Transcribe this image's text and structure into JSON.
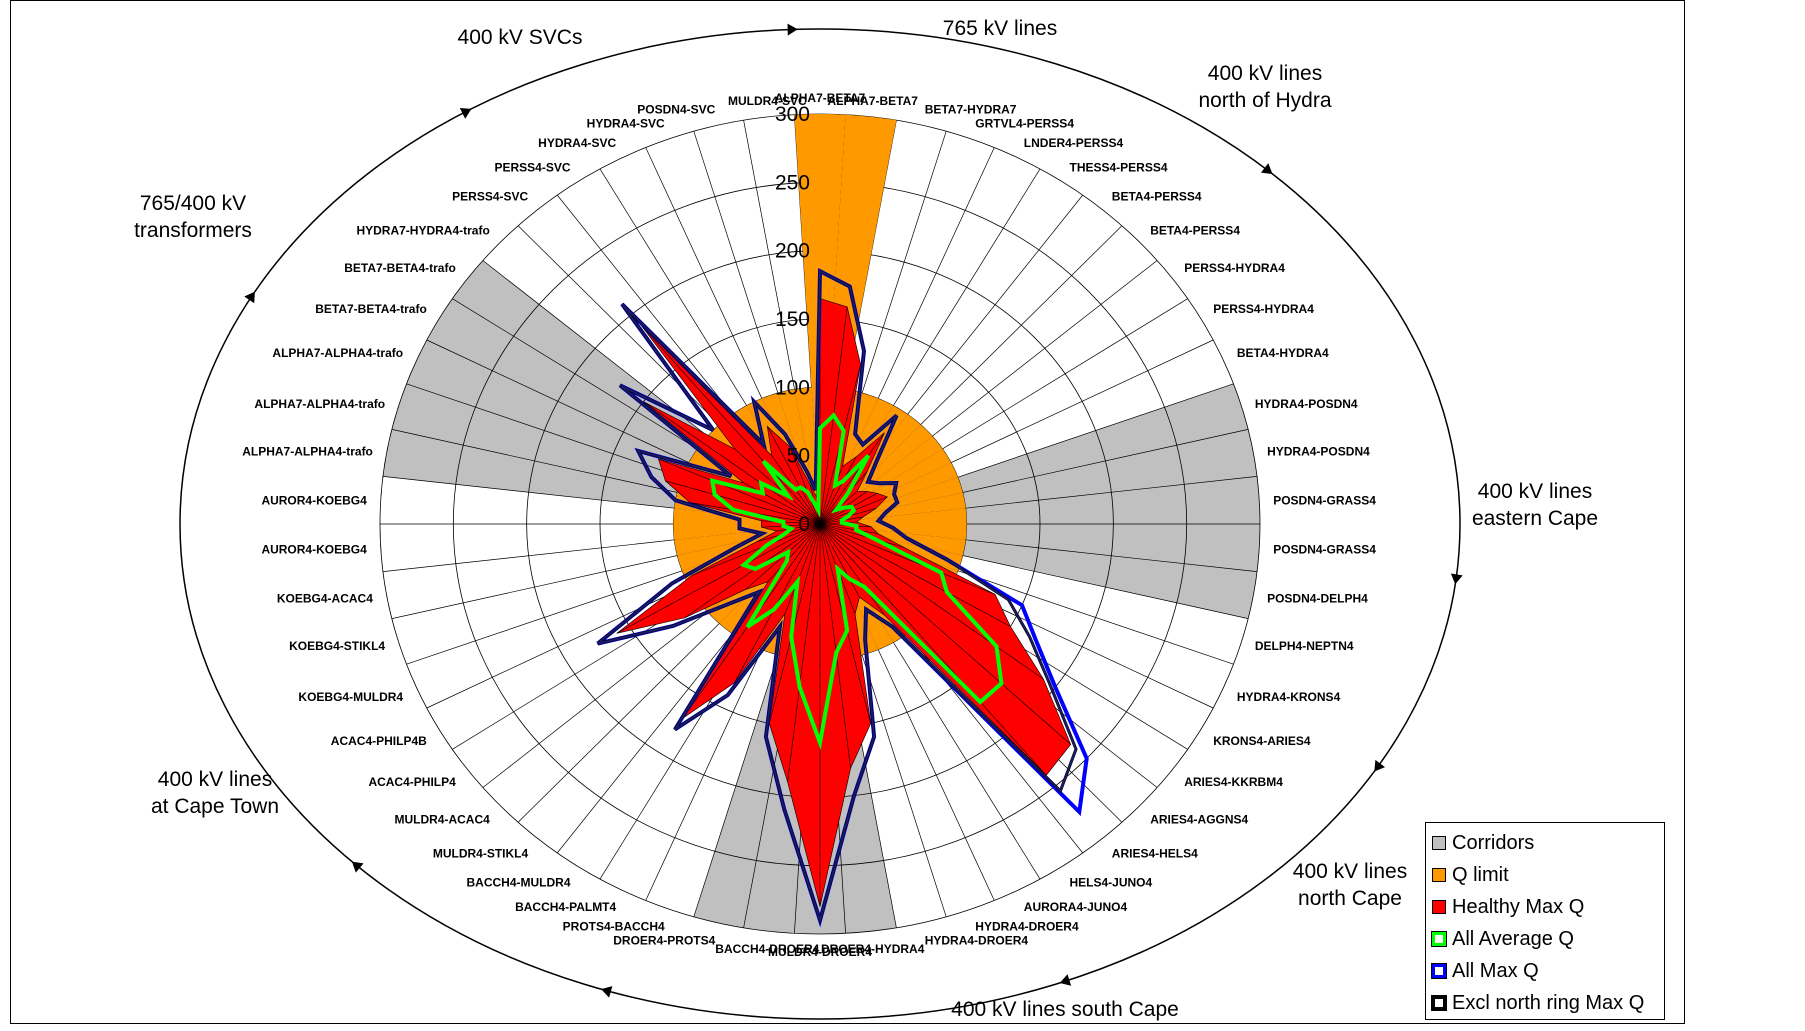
{
  "chart_data": {
    "type": "radar",
    "title": "",
    "radial_ticks": [
      "0",
      "50",
      "100",
      "150",
      "200",
      "250",
      "300"
    ],
    "r_max": 300,
    "categories": [
      "ALPHA7-BETA7",
      "ALPHA7-BETA7",
      "BETA7-HYDRA7",
      "GRTVL4-PERSS4",
      "LNDER4-PERSS4",
      "THESS4-PERSS4",
      "BETA4-PERSS4",
      "BETA4-PERSS4",
      "PERSS4-HYDRA4",
      "PERSS4-HYDRA4",
      "BETA4-HYDRA4",
      "HYDRA4-POSDN4",
      "HYDRA4-POSDN4",
      "POSDN4-GRASS4",
      "POSDN4-GRASS4",
      "POSDN4-DELPH4",
      "DELPH4-NEPTN4",
      "HYDRA4-KRONS4",
      "KRONS4-ARIES4",
      "ARIES4-KKRBM4",
      "ARIES4-AGGNS4",
      "ARIES4-HELS4",
      "HELS4-JUNO4",
      "AURORA4-JUNO4",
      "HYDRA4-DROER4",
      "HYDRA4-DROER4",
      "DROER4-HYDRA4",
      "MULDR4-DROER4",
      "BACCH4-DROER4",
      "DROER4-PROTS4",
      "PROTS4-BACCH4",
      "BACCH4-PALMT4",
      "BACCH4-MULDR4",
      "MULDR4-STIKL4",
      "MULDR4-ACAC4",
      "ACAC4-PHILP4",
      "ACAC4-PHILP4B",
      "KOEBG4-MULDR4",
      "KOEBG4-STIKL4",
      "KOEBG4-ACAC4",
      "AUROR4-KOEBG4",
      "AUROR4-KOEBG4",
      "ALPHA7-ALPHA4-trafo",
      "ALPHA7-ALPHA4-trafo",
      "ALPHA7-ALPHA4-trafo",
      "BETA7-BETA4-trafo",
      "BETA7-BETA4-trafo",
      "HYDRA7-HYDRA4-trafo",
      "PERSS4-SVC",
      "PERSS4-SVC",
      "HYDRA4-SVC",
      "HYDRA4-SVC",
      "POSDN4-SVC",
      "MULDR4-SVC"
    ],
    "group_labels": [
      {
        "text": "765 kV lines",
        "lines": [
          "765 kV lines"
        ]
      },
      {
        "text": "400 kV lines north of Hydra",
        "lines": [
          "400 kV lines",
          "north of Hydra"
        ]
      },
      {
        "text": "400 kV lines eastern Cape",
        "lines": [
          "400 kV lines",
          "eastern Cape"
        ]
      },
      {
        "text": "400 kV lines north Cape",
        "lines": [
          "400 kV lines",
          "north Cape"
        ]
      },
      {
        "text": "400 kV lines south Cape",
        "lines": [
          "400 kV lines south Cape"
        ]
      },
      {
        "text": "400 kV lines at Cape Town",
        "lines": [
          "400 kV lines",
          "at Cape Town"
        ]
      },
      {
        "text": "765/400 kV transformers",
        "lines": [
          "765/400 kV",
          "transformers"
        ]
      },
      {
        "text": "400 kV SVCs",
        "lines": [
          "400 kV SVCs"
        ]
      }
    ],
    "series": [
      {
        "name": "Corridors",
        "color": "#c0c0c0",
        "values": [
          0,
          0,
          0,
          0,
          0,
          0,
          0,
          0,
          0,
          0,
          0,
          300,
          300,
          300,
          300,
          300,
          0,
          0,
          0,
          0,
          0,
          0,
          0,
          0,
          0,
          0,
          300,
          300,
          300,
          300,
          0,
          0,
          0,
          0,
          0,
          0,
          0,
          0,
          0,
          0,
          0,
          0,
          300,
          300,
          300,
          300,
          300,
          0,
          0,
          0,
          0,
          0,
          0,
          0
        ]
      },
      {
        "name": "Q limit",
        "color": "#ff9900",
        "values": [
          300,
          300,
          100,
          100,
          100,
          100,
          100,
          100,
          100,
          100,
          100,
          100,
          100,
          100,
          100,
          100,
          100,
          100,
          100,
          100,
          100,
          100,
          100,
          100,
          100,
          100,
          100,
          100,
          100,
          100,
          100,
          100,
          100,
          100,
          100,
          100,
          100,
          100,
          100,
          100,
          100,
          100,
          100,
          100,
          100,
          100,
          100,
          100,
          100,
          100,
          100,
          100,
          100,
          100
        ]
      },
      {
        "name": "Healthy Max Q",
        "color": "#ff0000",
        "values": [
          165,
          160,
          120,
          45,
          55,
          80,
          50,
          35,
          40,
          45,
          50,
          40,
          30,
          25,
          35,
          40,
          60,
          130,
          150,
          190,
          235,
          240,
          80,
          60,
          70,
          150,
          180,
          280,
          190,
          150,
          70,
          130,
          170,
          55,
          70,
          115,
          160,
          95,
          45,
          30,
          40,
          40,
          90,
          110,
          120,
          60,
          150,
          80,
          190,
          60,
          80,
          60,
          30,
          20
        ]
      },
      {
        "name": "All Average Q",
        "color": "#00ff00",
        "values": [
          70,
          80,
          70,
          30,
          35,
          60,
          30,
          15,
          20,
          25,
          25,
          20,
          15,
          15,
          25,
          25,
          40,
          90,
          100,
          150,
          170,
          170,
          55,
          45,
          35,
          80,
          95,
          160,
          120,
          85,
          45,
          70,
          90,
          35,
          30,
          55,
          60,
          40,
          25,
          20,
          25,
          25,
          60,
          75,
          80,
          45,
          50,
          30,
          60,
          30,
          30,
          25,
          15,
          10
        ]
      },
      {
        "name": "All Max Q",
        "color": "#0000ff",
        "values": [
          185,
          175,
          130,
          70,
          65,
          95,
          60,
          45,
          50,
          60,
          55,
          55,
          45,
          40,
          50,
          60,
          90,
          150,
          170,
          200,
          250,
          275,
          90,
          70,
          90,
          160,
          200,
          290,
          210,
          160,
          80,
          140,
          180,
          65,
          85,
          125,
          175,
          110,
          60,
          40,
          55,
          55,
          100,
          120,
          135,
          70,
          170,
          100,
          210,
          70,
          100,
          70,
          40,
          25
        ]
      },
      {
        "name": "Excl north ring Max Q",
        "color": "#000000",
        "values": [
          185,
          175,
          130,
          70,
          65,
          95,
          60,
          45,
          50,
          60,
          55,
          55,
          45,
          40,
          50,
          60,
          90,
          140,
          165,
          195,
          240,
          255,
          90,
          70,
          90,
          160,
          200,
          290,
          210,
          160,
          80,
          140,
          180,
          65,
          85,
          125,
          175,
          110,
          60,
          40,
          55,
          55,
          100,
          120,
          135,
          70,
          170,
          100,
          210,
          70,
          100,
          70,
          40,
          25
        ]
      }
    ],
    "legend_position": "bottom-right"
  },
  "legend": [
    {
      "label": "Corridors",
      "swatch": "#c0c0c0",
      "style": "fill"
    },
    {
      "label": "Q limit",
      "swatch": "#ff9900",
      "style": "fill"
    },
    {
      "label": "Healthy Max Q",
      "swatch": "#ff0000",
      "style": "fill"
    },
    {
      "label": "All Average Q",
      "swatch": "#00ff00",
      "style": "outline"
    },
    {
      "label": "All Max Q",
      "swatch": "#0000ff",
      "style": "outline"
    },
    {
      "label": "Excl north ring Max Q",
      "swatch": "#000000",
      "style": "outline"
    }
  ]
}
